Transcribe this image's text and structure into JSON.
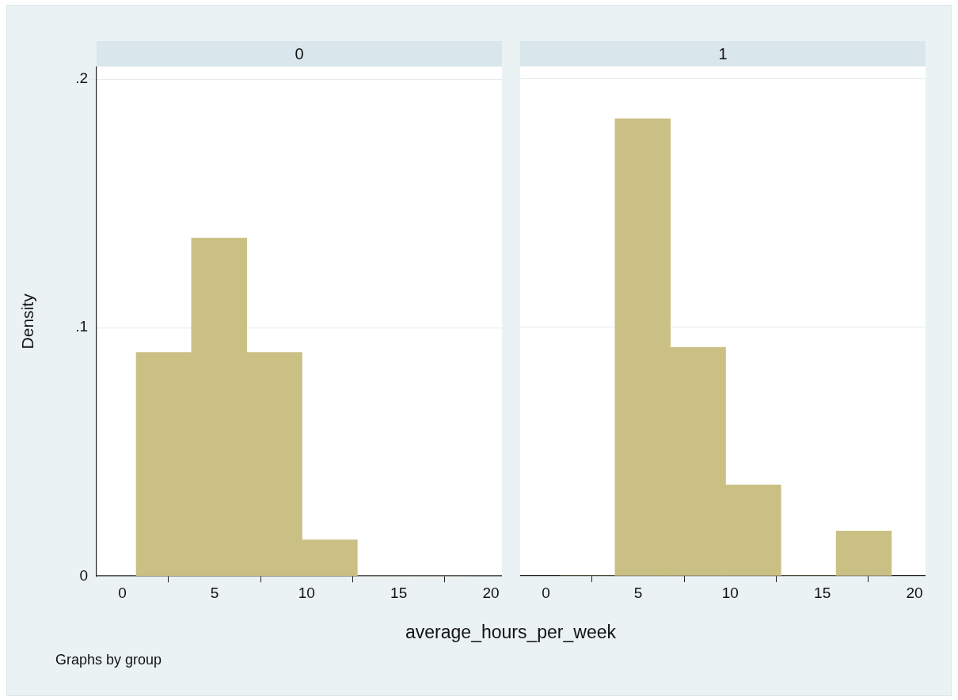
{
  "chart_data": [
    {
      "type": "histogram",
      "title": "0",
      "ylabel": "Density",
      "xlabel": "average_hours_per_week",
      "annotations": [
        "Graphs by group"
      ],
      "bins": [
        0.75,
        3.75,
        6.75,
        9.75,
        12.75,
        15.75,
        18.75
      ],
      "values": [
        0.09,
        0.136,
        0.09,
        0.0146,
        0,
        0
      ],
      "color": "#cbc084",
      "xlim": [
        -1.4,
        20.6
      ],
      "xticks": [
        0,
        5,
        10,
        15,
        20
      ],
      "ylim": [
        0,
        0.205
      ],
      "yticks": [
        0,
        {
          "value": 0.1,
          "label": ".1"
        },
        {
          "value": 0.2,
          "label": ".2"
        }
      ],
      "grid": "y"
    },
    {
      "type": "histogram",
      "title": "1",
      "bins": [
        0.75,
        3.75,
        6.75,
        9.75,
        12.75,
        15.75,
        18.75
      ],
      "values": [
        0,
        0.184,
        0.092,
        0.0366,
        0,
        0.018
      ],
      "color": "#cbc084",
      "xlim": [
        -1.4,
        20.6
      ],
      "xticks": [
        0,
        5,
        10,
        15,
        20
      ],
      "ylim": [
        0,
        0.205
      ],
      "yticks": [
        0,
        0.1,
        0.2
      ],
      "grid": "y",
      "tick_labels": "x"
    }
  ]
}
